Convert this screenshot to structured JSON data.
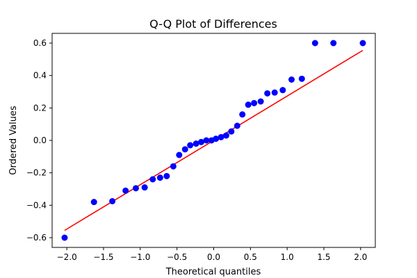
{
  "chart_data": {
    "type": "scatter",
    "title": "Q-Q Plot of Differences",
    "xlabel": "Theoretical quantiles",
    "ylabel": "Ordered Values",
    "xlim": [
      -2.2,
      2.2
    ],
    "ylim": [
      -0.66,
      0.66
    ],
    "xticks": [
      -2.0,
      -1.5,
      -1.0,
      -0.5,
      0.0,
      0.5,
      1.0,
      1.5,
      2.0
    ],
    "xtick_labels": [
      "−2.0",
      "−1.5",
      "−1.0",
      "−0.5",
      "0.0",
      "0.5",
      "1.0",
      "1.5",
      "2.0"
    ],
    "yticks": [
      -0.6,
      -0.4,
      -0.2,
      0.0,
      0.2,
      0.4,
      0.6
    ],
    "ytick_labels": [
      "−0.6",
      "−0.4",
      "−0.2",
      "0.0",
      "0.2",
      "0.4",
      "0.6"
    ],
    "grid": false,
    "colors": {
      "points": "#0000ff",
      "fit_line": "#ff0000"
    },
    "series": [
      {
        "kind": "points",
        "x": [
          -2.03,
          -1.63,
          -1.38,
          -1.2,
          -1.06,
          -0.94,
          -0.83,
          -0.73,
          -0.64,
          -0.55,
          -0.47,
          -0.39,
          -0.32,
          -0.24,
          -0.17,
          -0.1,
          -0.03,
          0.03,
          0.1,
          0.17,
          0.24,
          0.32,
          0.39,
          0.47,
          0.55,
          0.64,
          0.73,
          0.83,
          0.94,
          1.06,
          1.2,
          1.38,
          1.63,
          2.03
        ],
        "y": [
          -0.6,
          -0.38,
          -0.375,
          -0.31,
          -0.295,
          -0.29,
          -0.24,
          -0.23,
          -0.22,
          -0.16,
          -0.09,
          -0.055,
          -0.03,
          -0.02,
          -0.01,
          0.0,
          0.0,
          0.01,
          0.02,
          0.03,
          0.055,
          0.09,
          0.16,
          0.22,
          0.23,
          0.24,
          0.29,
          0.295,
          0.31,
          0.375,
          0.38,
          0.6,
          0.6,
          0.6
        ]
      },
      {
        "kind": "fit_line",
        "x": [
          -2.03,
          2.03
        ],
        "y": [
          -0.555,
          0.555
        ]
      }
    ]
  }
}
